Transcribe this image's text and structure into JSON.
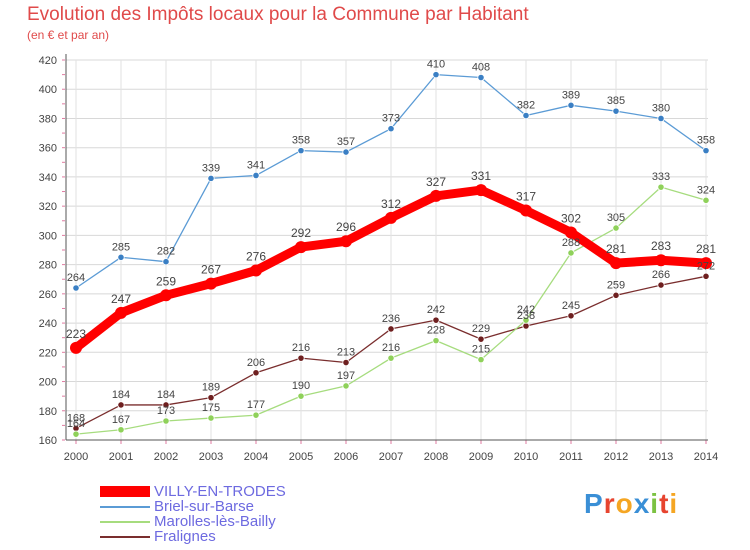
{
  "title": "Evolution des Impôts locaux pour la Commune par Habitant",
  "subtitle": "(en € et par an)",
  "logo_text": "Proxiti",
  "chart_data": {
    "type": "line",
    "title": "Evolution des Impôts locaux pour la Commune par Habitant",
    "subtitle": "(en € et par an)",
    "x": [
      "2000",
      "2001",
      "2002",
      "2003",
      "2004",
      "2005",
      "2006",
      "2007",
      "2008",
      "2009",
      "2010",
      "2011",
      "2012",
      "2013",
      "2014"
    ],
    "ylim": [
      160,
      420
    ],
    "yticks": [
      160,
      180,
      200,
      220,
      240,
      260,
      280,
      300,
      320,
      340,
      360,
      380,
      400,
      420
    ],
    "grid": true,
    "legend": "bottom-left",
    "series": [
      {
        "name": "VILLY-EN-TRODES",
        "color": "#ff0000",
        "values": [
          223,
          247,
          259,
          267,
          276,
          292,
          296,
          312,
          327,
          331,
          317,
          302,
          281,
          283,
          281
        ]
      },
      {
        "name": "Briel-sur-Barse",
        "color": "#5b9bd5",
        "values": [
          264,
          285,
          282,
          339,
          341,
          358,
          357,
          373,
          410,
          408,
          382,
          389,
          385,
          380,
          358
        ]
      },
      {
        "name": "Marolles-lès-Bailly",
        "color": "#a6dc7e",
        "values": [
          164,
          167,
          173,
          175,
          177,
          190,
          197,
          216,
          228,
          215,
          242,
          288,
          305,
          333,
          324
        ]
      },
      {
        "name": "Fralignes",
        "color": "#7a2e2e",
        "values": [
          168,
          184,
          184,
          189,
          206,
          216,
          213,
          236,
          242,
          229,
          238,
          245,
          259,
          266,
          272
        ]
      }
    ]
  }
}
